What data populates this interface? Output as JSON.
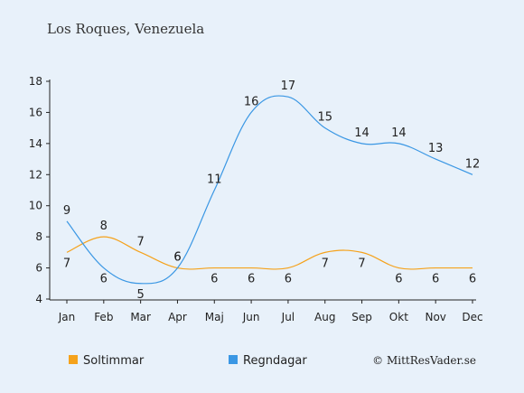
{
  "chart_data": {
    "type": "line",
    "title": "Los Roques, Venezuela",
    "categories": [
      "Jan",
      "Feb",
      "Mar",
      "Apr",
      "Maj",
      "Jun",
      "Jul",
      "Aug",
      "Sep",
      "Okt",
      "Nov",
      "Dec"
    ],
    "series": [
      {
        "name": "Soltimmar",
        "color": "#f5a21b",
        "values": [
          7,
          8,
          7,
          6,
          6,
          6,
          6,
          7,
          7,
          6,
          6,
          6
        ]
      },
      {
        "name": "Regndagar",
        "color": "#3a97e4",
        "values": [
          9,
          6,
          5,
          6,
          11,
          16,
          17,
          15,
          14,
          14,
          13,
          12
        ]
      }
    ],
    "ylim": [
      4,
      18
    ],
    "yticks": [
      4,
      6,
      8,
      10,
      12,
      14,
      16,
      18
    ],
    "grid": false,
    "legend": "bottom-left",
    "credit": "© MittResVader.se"
  }
}
